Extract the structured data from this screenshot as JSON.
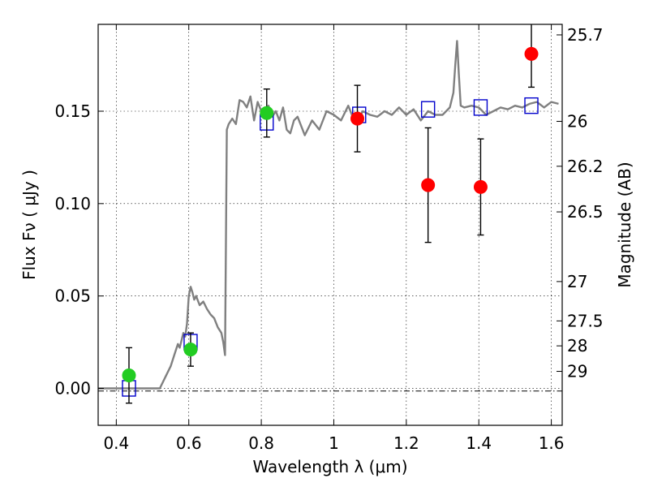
{
  "chart_data": {
    "type": "scatter",
    "xlabel": "Wavelength  λ (μm)",
    "ylabel": "Flux  Fν  ( μJy )",
    "ylabel_right": "Magnitude (AB)",
    "xlim": [
      0.35,
      1.63
    ],
    "ylim": [
      -0.02,
      0.197
    ],
    "grid": true,
    "x_ticks": [
      {
        "value": 0.4,
        "label": "0.4"
      },
      {
        "value": 0.6,
        "label": "0.6"
      },
      {
        "value": 0.8,
        "label": "0.8"
      },
      {
        "value": 1.0,
        "label": "1"
      },
      {
        "value": 1.2,
        "label": "1.2"
      },
      {
        "value": 1.4,
        "label": "1.4"
      },
      {
        "value": 1.6,
        "label": "1.6"
      }
    ],
    "y_ticks": [
      {
        "value": 0.0,
        "label": "0.00"
      },
      {
        "value": 0.05,
        "label": "0.05"
      },
      {
        "value": 0.1,
        "label": "0.10"
      },
      {
        "value": 0.15,
        "label": "0.15"
      }
    ],
    "mag_ticks": [
      {
        "value": 0.1913,
        "label": "25.7"
      },
      {
        "value": 0.1445,
        "label": "26"
      },
      {
        "value": 0.1202,
        "label": "26.2"
      },
      {
        "value": 0.0955,
        "label": "26.5"
      },
      {
        "value": 0.0578,
        "label": "27"
      },
      {
        "value": 0.0365,
        "label": "27.5"
      },
      {
        "value": 0.023,
        "label": "28"
      },
      {
        "value": 0.0092,
        "label": "29"
      }
    ],
    "series": [
      {
        "marker": "line",
        "color": "#808080",
        "x": [
          0.35,
          0.43,
          0.52,
          0.535,
          0.55,
          0.56,
          0.57,
          0.575,
          0.58,
          0.585,
          0.59,
          0.595,
          0.6,
          0.605,
          0.61,
          0.615,
          0.62,
          0.63,
          0.64,
          0.65,
          0.66,
          0.67,
          0.68,
          0.69,
          0.695,
          0.7,
          0.705,
          0.71,
          0.72,
          0.73,
          0.74,
          0.75,
          0.76,
          0.77,
          0.78,
          0.79,
          0.8,
          0.81,
          0.82,
          0.83,
          0.84,
          0.85,
          0.86,
          0.87,
          0.88,
          0.89,
          0.9,
          0.92,
          0.94,
          0.96,
          0.98,
          1.0,
          1.02,
          1.04,
          1.06,
          1.08,
          1.1,
          1.12,
          1.14,
          1.16,
          1.18,
          1.2,
          1.22,
          1.24,
          1.26,
          1.28,
          1.3,
          1.32,
          1.33,
          1.335,
          1.34,
          1.345,
          1.35,
          1.36,
          1.38,
          1.4,
          1.42,
          1.44,
          1.46,
          1.48,
          1.5,
          1.52,
          1.54,
          1.56,
          1.58,
          1.6,
          1.62
        ],
        "y": [
          0.0,
          0.0,
          0.0,
          0.006,
          0.012,
          0.018,
          0.024,
          0.022,
          0.026,
          0.03,
          0.028,
          0.035,
          0.05,
          0.055,
          0.052,
          0.048,
          0.05,
          0.045,
          0.047,
          0.043,
          0.04,
          0.038,
          0.033,
          0.03,
          0.025,
          0.018,
          0.14,
          0.143,
          0.146,
          0.143,
          0.156,
          0.155,
          0.152,
          0.158,
          0.145,
          0.155,
          0.15,
          0.148,
          0.153,
          0.147,
          0.15,
          0.145,
          0.152,
          0.14,
          0.138,
          0.145,
          0.147,
          0.137,
          0.145,
          0.14,
          0.15,
          0.148,
          0.145,
          0.153,
          0.143,
          0.15,
          0.148,
          0.147,
          0.15,
          0.148,
          0.152,
          0.148,
          0.151,
          0.145,
          0.15,
          0.148,
          0.148,
          0.152,
          0.16,
          0.175,
          0.188,
          0.17,
          0.153,
          0.152,
          0.153,
          0.152,
          0.148,
          0.15,
          0.152,
          0.151,
          0.153,
          0.152,
          0.154,
          0.155,
          0.152,
          0.155,
          0.154
        ]
      },
      {
        "marker": "open-square",
        "color": "#0000cc",
        "x": [
          0.435,
          0.605,
          0.815,
          1.07,
          1.26,
          1.405,
          1.545
        ],
        "y": [
          0.0,
          0.025,
          0.144,
          0.148,
          0.151,
          0.152,
          0.153
        ]
      },
      {
        "marker": "filled-circle",
        "color": "#22cc22",
        "x": [
          0.435,
          0.605,
          0.815
        ],
        "y": [
          0.007,
          0.021,
          0.149
        ],
        "yerr": [
          0.015,
          0.009,
          0.013
        ]
      },
      {
        "marker": "filled-circle",
        "color": "#ff0000",
        "x": [
          1.065,
          1.26,
          1.405,
          1.545
        ],
        "y": [
          0.146,
          0.11,
          0.109,
          0.181
        ],
        "yerr": [
          0.018,
          0.031,
          0.026,
          0.018
        ]
      }
    ]
  }
}
